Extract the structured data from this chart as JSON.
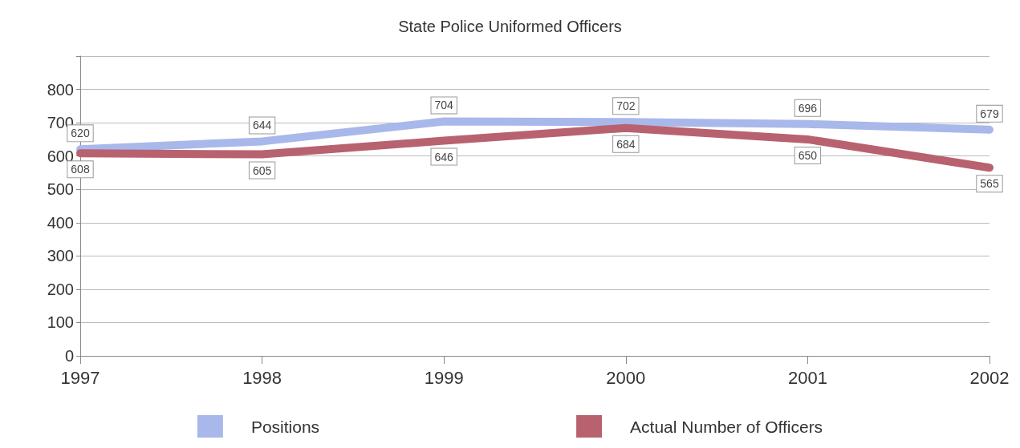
{
  "chart_data": {
    "type": "line",
    "title": "State Police Uniformed Officers",
    "categories": [
      "1997",
      "1998",
      "1999",
      "2000",
      "2001",
      "2002"
    ],
    "series": [
      {
        "name": "Positions",
        "color": "#a9b8ea",
        "values": [
          620,
          644,
          704,
          702,
          696,
          679
        ]
      },
      {
        "name": "Actual Number of Officers",
        "color": "#b8626f",
        "values": [
          608,
          605,
          646,
          684,
          650,
          565
        ]
      }
    ],
    "ylim": [
      0,
      900
    ],
    "yticks": [
      0,
      100,
      200,
      300,
      400,
      500,
      600,
      700,
      800,
      {
        "value": 900,
        "label": null
      }
    ],
    "grid": "y",
    "data_labels": true,
    "legend": "bottom",
    "marker": "none",
    "line_style": "solid"
  }
}
